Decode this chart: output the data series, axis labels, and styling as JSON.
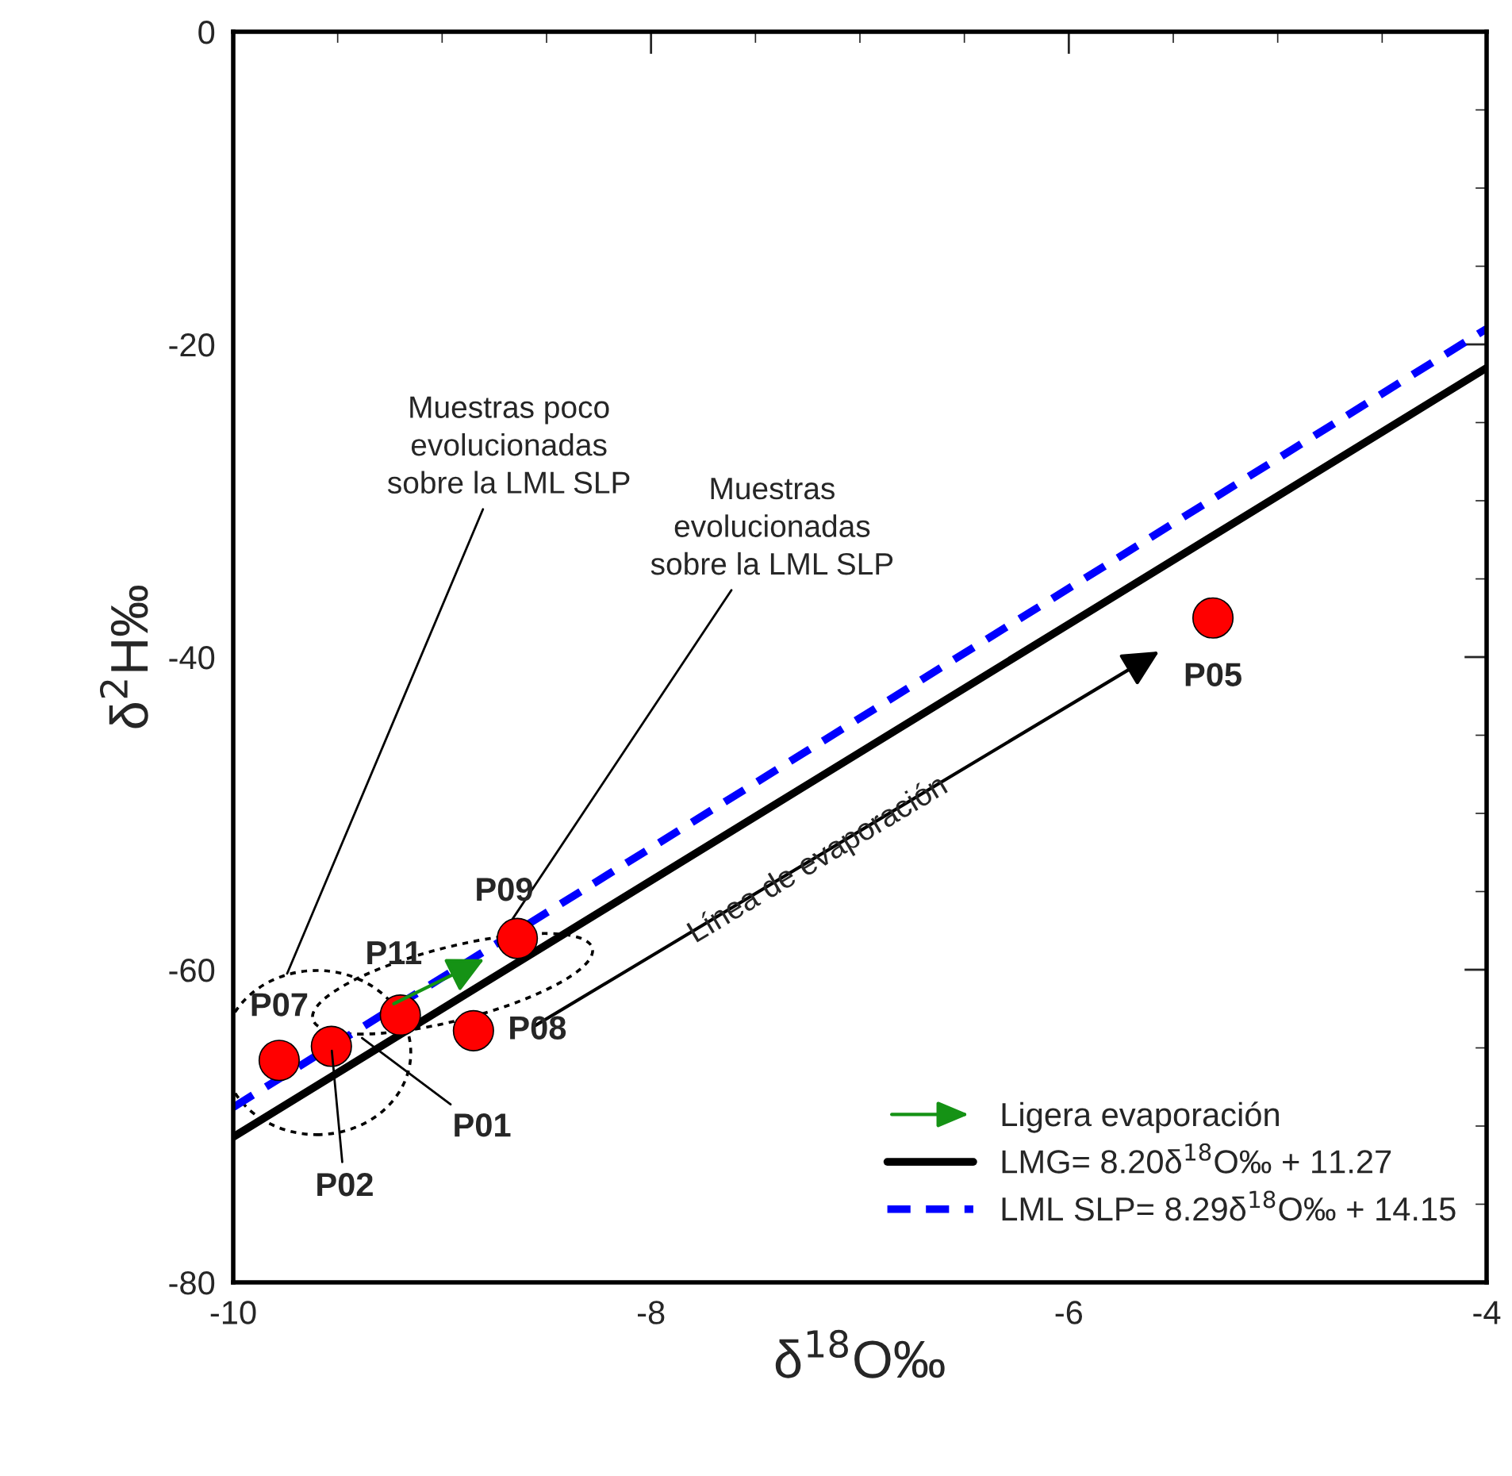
{
  "chart_data": {
    "type": "scatter",
    "xlabel": "δ$^{18}$O‰",
    "ylabel": "δ$^{2}$H‰",
    "xlim": [
      -10,
      -4
    ],
    "ylim": [
      -80,
      0
    ],
    "xticks": [
      -10,
      -8,
      -6,
      -4
    ],
    "yticks": [
      -80,
      -60,
      -40,
      -20,
      0
    ],
    "grid": false,
    "legend": "bottom right",
    "series": [
      {
        "type": "line",
        "name": "LMG= 8.20δ$^{18}$O‰ + 11.27",
        "color": "#000000",
        "line_style": "solid",
        "x": [
          -10,
          -4
        ],
        "values": [
          -70.7,
          -21.5
        ]
      },
      {
        "type": "line",
        "name": "LML SLP= 8.29δ$^{18}$O‰ + 14.15",
        "color": "#0000ff",
        "line_style": "dashed",
        "x": [
          -10,
          -4
        ],
        "values": [
          -68.8,
          -19.0
        ]
      },
      {
        "color": "#ff0000",
        "x": [
          -9.78,
          -9.53,
          -9.2,
          -8.85,
          -8.64,
          -5.31
        ],
        "values": [
          -65.8,
          -64.9,
          -62.9,
          -63.9,
          -58.0,
          -37.5
        ],
        "marker": "circle"
      }
    ],
    "annotations": [
      {
        "text": "P07",
        "x": -9.78,
        "y": -65.8
      },
      {
        "text": "P02",
        "x": -9.53,
        "y": -64.9
      },
      {
        "text": "P11",
        "x": -9.2,
        "y": -62.9
      },
      {
        "text": "P01",
        "x": -9.4,
        "y": -64.2
      },
      {
        "text": "P08",
        "x": -8.85,
        "y": -63.9
      },
      {
        "text": "P09",
        "x": -8.64,
        "y": -58.0
      },
      {
        "text": "P05",
        "x": -5.31,
        "y": -37.5
      },
      "Muestras poco\nevolucionadas\nsobre la LML SLP",
      {
        "text": "Muestras\nevolucionadas\nsobre la LML SLP",
        "x": -8.7,
        "y": -57.5
      },
      "Línea de evaporación",
      "Ligera evaporación"
    ]
  }
}
